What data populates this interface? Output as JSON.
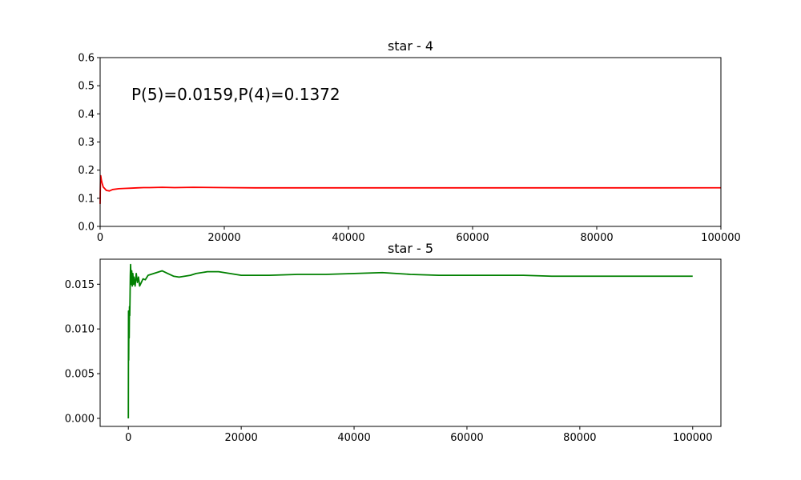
{
  "chart_data": [
    {
      "type": "line",
      "title": "star - 4",
      "xlabel": "",
      "ylabel": "",
      "xlim": [
        0,
        100000
      ],
      "ylim": [
        0,
        0.6
      ],
      "xticks": [
        0,
        20000,
        40000,
        60000,
        80000,
        100000
      ],
      "xtick_labels": [
        "0",
        "20000",
        "40000",
        "60000",
        "80000",
        "100000"
      ],
      "yticks": [
        0.0,
        0.1,
        0.2,
        0.3,
        0.4,
        0.5,
        0.6
      ],
      "ytick_labels": [
        "0.0",
        "0.1",
        "0.2",
        "0.3",
        "0.4",
        "0.5",
        "0.6"
      ],
      "grid": false,
      "annotation": "P(5)=0.0159,P(4)=0.1372",
      "series": [
        {
          "color": "#ff0000",
          "x": [
            1,
            20,
            50,
            100,
            200,
            300,
            500,
            800,
            1000,
            1500,
            2000,
            3000,
            4000,
            5000,
            6000,
            7000,
            8000,
            10000,
            12000,
            15000,
            20000,
            25000,
            30000,
            40000,
            50000,
            60000,
            70000,
            80000,
            90000,
            100000
          ],
          "y": [
            0.08,
            0.12,
            0.16,
            0.18,
            0.165,
            0.155,
            0.14,
            0.133,
            0.128,
            0.126,
            0.131,
            0.134,
            0.135,
            0.136,
            0.137,
            0.138,
            0.138,
            0.139,
            0.138,
            0.139,
            0.138,
            0.137,
            0.137,
            0.137,
            0.137,
            0.137,
            0.137,
            0.137,
            0.137,
            0.1372
          ]
        }
      ]
    },
    {
      "type": "line",
      "title": "star - 5",
      "xlabel": "",
      "ylabel": "",
      "xlim": [
        -5000,
        105000
      ],
      "ylim": [
        -0.0009,
        0.0178
      ],
      "xticks": [
        0,
        20000,
        40000,
        60000,
        80000,
        100000
      ],
      "xtick_labels": [
        "0",
        "20000",
        "40000",
        "60000",
        "80000",
        "100000"
      ],
      "yticks": [
        0.0,
        0.005,
        0.01,
        0.015
      ],
      "ytick_labels": [
        "0.000",
        "0.005",
        "0.010",
        "0.015"
      ],
      "grid": false,
      "series": [
        {
          "color": "#008000",
          "x": [
            0,
            30,
            60,
            100,
            150,
            200,
            250,
            300,
            350,
            400,
            500,
            600,
            700,
            800,
            900,
            1000,
            1200,
            1400,
            1600,
            1800,
            2000,
            2300,
            2600,
            3000,
            3500,
            4000,
            4500,
            5000,
            5500,
            6000,
            7000,
            8000,
            9000,
            10000,
            11000,
            12000,
            14000,
            16000,
            18000,
            20000,
            25000,
            30000,
            35000,
            40000,
            45000,
            50000,
            55000,
            60000,
            65000,
            70000,
            75000,
            80000,
            90000,
            100000
          ],
          "y": [
            0.0,
            0.012,
            0.0065,
            0.011,
            0.009,
            0.0125,
            0.0115,
            0.0135,
            0.016,
            0.0172,
            0.015,
            0.0165,
            0.0148,
            0.0162,
            0.015,
            0.0158,
            0.0148,
            0.0162,
            0.0152,
            0.0158,
            0.0148,
            0.0152,
            0.0156,
            0.0155,
            0.016,
            0.0161,
            0.0162,
            0.0163,
            0.0164,
            0.0165,
            0.0162,
            0.0159,
            0.0158,
            0.0159,
            0.016,
            0.0162,
            0.0164,
            0.0164,
            0.0162,
            0.016,
            0.016,
            0.0161,
            0.0161,
            0.0162,
            0.0163,
            0.0161,
            0.016,
            0.016,
            0.016,
            0.016,
            0.0159,
            0.0159,
            0.0159,
            0.0159
          ]
        }
      ]
    }
  ]
}
